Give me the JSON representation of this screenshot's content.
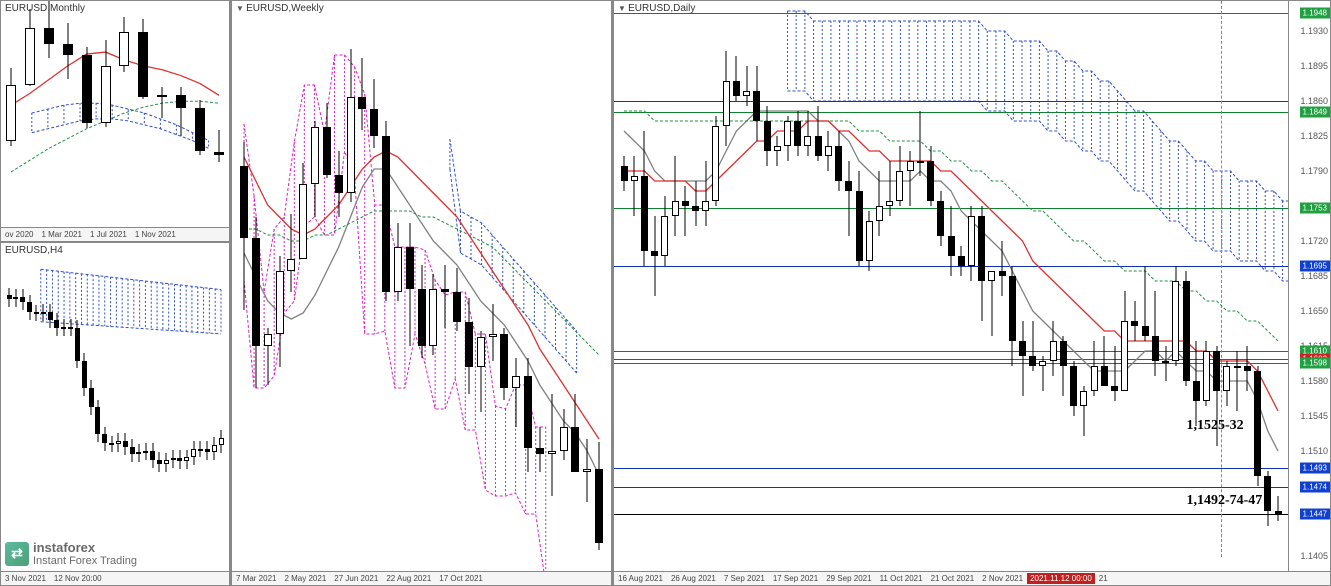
{
  "logo": {
    "brand": "instaforex",
    "tagline": "Instant Forex Trading"
  },
  "colors": {
    "candle_up": "#ffffff",
    "candle_down": "#000000",
    "candle_border": "#000000",
    "ma_red": "#e03030",
    "ma_green": "#209040",
    "ma_gray": "#808080",
    "cloud_blue": "#3050d0",
    "cloud_magenta": "#e020c0",
    "hline_blue": "#1030c0",
    "hline_green": "#108030",
    "hline_red": "#c02020",
    "hline_black": "#000000",
    "tag_green": "#20a040",
    "tag_blue": "#1040d0",
    "tag_red": "#d02020",
    "x_highlight": "#c02020"
  },
  "monthly": {
    "title": "EURUSD,Monthly",
    "x_ticks": [
      "ov 2020",
      "1 Mar 2021",
      "1 Jul 2021",
      "1 Nov 2021"
    ],
    "y_range": [
      1.12,
      1.235
    ],
    "candles": [
      {
        "t": 0.05,
        "o": 1.164,
        "h": 1.201,
        "l": 1.161,
        "c": 1.1925
      },
      {
        "t": 0.13,
        "o": 1.1925,
        "h": 1.231,
        "l": 1.192,
        "c": 1.2215
      },
      {
        "t": 0.21,
        "o": 1.2215,
        "h": 1.2349,
        "l": 1.206,
        "c": 1.213
      },
      {
        "t": 0.29,
        "o": 1.213,
        "h": 1.224,
        "l": 1.1955,
        "c": 1.2075
      },
      {
        "t": 0.37,
        "o": 1.2075,
        "h": 1.2115,
        "l": 1.1705,
        "c": 1.173
      },
      {
        "t": 0.45,
        "o": 1.173,
        "h": 1.215,
        "l": 1.171,
        "c": 1.202
      },
      {
        "t": 0.53,
        "o": 1.202,
        "h": 1.227,
        "l": 1.199,
        "c": 1.219
      },
      {
        "t": 0.61,
        "o": 1.219,
        "h": 1.226,
        "l": 1.185,
        "c": 1.186
      },
      {
        "t": 0.69,
        "o": 1.186,
        "h": 1.191,
        "l": 1.1755,
        "c": 1.187
      },
      {
        "t": 0.77,
        "o": 1.187,
        "h": 1.191,
        "l": 1.1665,
        "c": 1.1805
      },
      {
        "t": 0.85,
        "o": 1.1805,
        "h": 1.1845,
        "l": 1.1565,
        "c": 1.1585
      },
      {
        "t": 0.93,
        "o": 1.158,
        "h": 1.1695,
        "l": 1.153,
        "c": 1.1565
      }
    ],
    "ma_red": [
      1.182,
      1.188,
      1.195,
      1.202,
      1.208,
      1.209,
      1.205,
      1.202,
      1.2,
      1.197,
      1.193,
      1.187
    ],
    "ma_green": [
      1.148,
      1.154,
      1.16,
      1.165,
      1.17,
      1.174,
      1.178,
      1.181,
      1.183,
      1.184,
      1.184,
      1.183
    ],
    "cloud_blue_top": [
      1.178,
      1.18,
      1.182,
      1.183,
      1.183,
      1.182,
      1.18,
      1.178,
      1.175,
      1.172,
      1.168,
      1.164
    ],
    "cloud_blue_bot": [
      1.168,
      1.17,
      1.172,
      1.174,
      1.175,
      1.175,
      1.174,
      1.172,
      1.17,
      1.167,
      1.164,
      1.16
    ]
  },
  "h4": {
    "title": "EURUSD,H4",
    "x_ticks": [
      "3 Nov 2021",
      "12 Nov 20:00"
    ],
    "y_range": [
      1.14,
      1.165
    ],
    "candles_count": 32
  },
  "weekly": {
    "title": "EURUSD,Weekly",
    "x_ticks": [
      "7 Mar 2021",
      "2 May 2021",
      "27 Jun 2021",
      "22 Aug 2021",
      "17 Oct 2021"
    ],
    "y_range": [
      1.14,
      1.235
    ],
    "candles": [
      {
        "o": 1.2075,
        "h": 1.2115,
        "l": 1.1835,
        "c": 1.1955
      },
      {
        "o": 1.1955,
        "h": 1.199,
        "l": 1.1705,
        "c": 1.1775
      },
      {
        "o": 1.1775,
        "h": 1.1805,
        "l": 1.171,
        "c": 1.1795
      },
      {
        "o": 1.1795,
        "h": 1.1925,
        "l": 1.174,
        "c": 1.19
      },
      {
        "o": 1.19,
        "h": 1.1995,
        "l": 1.1865,
        "c": 1.192
      },
      {
        "o": 1.192,
        "h": 1.208,
        "l": 1.1945,
        "c": 1.2045
      },
      {
        "o": 1.2045,
        "h": 1.215,
        "l": 1.199,
        "c": 1.214
      },
      {
        "o": 1.214,
        "h": 1.218,
        "l": 1.2055,
        "c": 1.206
      },
      {
        "o": 1.206,
        "h": 1.21,
        "l": 1.199,
        "c": 1.203
      },
      {
        "o": 1.203,
        "h": 1.227,
        "l": 1.2015,
        "c": 1.219
      },
      {
        "o": 1.219,
        "h": 1.2255,
        "l": 1.2135,
        "c": 1.217
      },
      {
        "o": 1.217,
        "h": 1.222,
        "l": 1.2105,
        "c": 1.2125
      },
      {
        "o": 1.2125,
        "h": 1.215,
        "l": 1.185,
        "c": 1.1865
      },
      {
        "o": 1.1865,
        "h": 1.198,
        "l": 1.185,
        "c": 1.194
      },
      {
        "o": 1.194,
        "h": 1.198,
        "l": 1.1775,
        "c": 1.187
      },
      {
        "o": 1.187,
        "h": 1.191,
        "l": 1.1755,
        "c": 1.1775
      },
      {
        "o": 1.1775,
        "h": 1.1895,
        "l": 1.176,
        "c": 1.187
      },
      {
        "o": 1.187,
        "h": 1.191,
        "l": 1.1805,
        "c": 1.1865
      },
      {
        "o": 1.1865,
        "h": 1.1905,
        "l": 1.18,
        "c": 1.1815
      },
      {
        "o": 1.1815,
        "h": 1.1855,
        "l": 1.1695,
        "c": 1.174
      },
      {
        "o": 1.174,
        "h": 1.18,
        "l": 1.1665,
        "c": 1.179
      },
      {
        "o": 1.179,
        "h": 1.1845,
        "l": 1.175,
        "c": 1.1795
      },
      {
        "o": 1.1795,
        "h": 1.1805,
        "l": 1.1685,
        "c": 1.1705
      },
      {
        "o": 1.1705,
        "h": 1.1755,
        "l": 1.164,
        "c": 1.1725
      },
      {
        "o": 1.1725,
        "h": 1.1755,
        "l": 1.1565,
        "c": 1.1605
      },
      {
        "o": 1.1605,
        "h": 1.164,
        "l": 1.1565,
        "c": 1.1595
      },
      {
        "o": 1.1595,
        "h": 1.1695,
        "l": 1.1525,
        "c": 1.16
      },
      {
        "o": 1.16,
        "h": 1.167,
        "l": 1.1585,
        "c": 1.164
      },
      {
        "o": 1.164,
        "h": 1.1695,
        "l": 1.1575,
        "c": 1.1565
      },
      {
        "o": 1.1565,
        "h": 1.162,
        "l": 1.1515,
        "c": 1.157
      },
      {
        "o": 1.157,
        "h": 1.1615,
        "l": 1.1435,
        "c": 1.1447
      }
    ],
    "ma_red": [
      1.209,
      1.205,
      1.201,
      1.199,
      1.197,
      1.196,
      1.197,
      1.199,
      1.201,
      1.204,
      1.207,
      1.209,
      1.21,
      1.209,
      1.207,
      1.205,
      1.203,
      1.201,
      1.199,
      1.196,
      1.193,
      1.19,
      1.187,
      1.184,
      1.181,
      1.177,
      1.174,
      1.171,
      1.168,
      1.165,
      1.162
    ],
    "ma_green": [
      1.197,
      1.197,
      1.196,
      1.196,
      1.195,
      1.195,
      1.196,
      1.196,
      1.197,
      1.198,
      1.199,
      1.2,
      1.2,
      1.2,
      1.2,
      1.199,
      1.199,
      1.198,
      1.197,
      1.196,
      1.195,
      1.194,
      1.192,
      1.19,
      1.188,
      1.186,
      1.184,
      1.182,
      1.18,
      1.178,
      1.176
    ],
    "ma_gray": [
      1.193,
      1.189,
      1.185,
      1.183,
      1.182,
      1.183,
      1.186,
      1.19,
      1.194,
      1.199,
      1.204,
      1.207,
      1.207,
      1.204,
      1.201,
      1.198,
      1.195,
      1.193,
      1.191,
      1.188,
      1.185,
      1.183,
      1.181,
      1.178,
      1.175,
      1.171,
      1.168,
      1.165,
      1.163,
      1.16,
      1.156
    ]
  },
  "daily": {
    "title": "EURUSD,Daily",
    "x_ticks": [
      "16 Aug 2021",
      "26 Aug 2021",
      "7 Sep 2021",
      "17 Sep 2021",
      "29 Sep 2021",
      "11 Oct 2021",
      "21 Oct 2021",
      "2 Nov 2021"
    ],
    "x_highlight": "2021.11.12 00:00",
    "y_range": [
      1.139,
      1.196
    ],
    "y_ticks": [
      1.1405,
      1.1447,
      1.1475,
      1.151,
      1.1545,
      1.158,
      1.1615,
      1.165,
      1.1685,
      1.172,
      1.1755,
      1.179,
      1.1825,
      1.186,
      1.1895,
      1.193
    ],
    "price_tags": [
      {
        "v": 1.1948,
        "bg": "#20a040"
      },
      {
        "v": 1.1849,
        "bg": "#20a040"
      },
      {
        "v": 1.1753,
        "bg": "#20a040"
      },
      {
        "v": 1.1695,
        "bg": "#1040d0"
      },
      {
        "v": 1.161,
        "bg": "#20a040"
      },
      {
        "v": 1.1602,
        "bg": "#d02020"
      },
      {
        "v": 1.1598,
        "bg": "#20a040"
      },
      {
        "v": 1.1493,
        "bg": "#1040d0"
      },
      {
        "v": 1.1474,
        "bg": "#1040d0"
      },
      {
        "v": 1.1447,
        "bg": "#1040d0"
      }
    ],
    "hlines": [
      {
        "v": 1.1948,
        "c": "#108030"
      },
      {
        "v": 1.186,
        "c": "#1030c0"
      },
      {
        "v": 1.1849,
        "c": "#108030"
      },
      {
        "v": 1.1753,
        "c": "#108030"
      },
      {
        "v": 1.1695,
        "c": "#1030c0"
      },
      {
        "v": 1.161,
        "c": "#108030"
      },
      {
        "v": 1.1602,
        "c": "#c02020"
      },
      {
        "v": 1.1598,
        "c": "#108030"
      },
      {
        "v": 1.1493,
        "c": "#1030c0"
      },
      {
        "v": 1.1474,
        "c": "#1030c0"
      },
      {
        "v": 1.1447,
        "c": "#000000"
      }
    ],
    "annotations": [
      {
        "text": "1,1525-32",
        "x": 0.86,
        "y_v": 1.1535
      },
      {
        "text": "1,1492-74-47",
        "x": 0.86,
        "y_v": 1.146
      }
    ],
    "vline_x": 0.913,
    "candles": [
      {
        "o": 1.1795,
        "h": 1.1805,
        "l": 1.177,
        "c": 1.178
      },
      {
        "o": 1.178,
        "h": 1.1805,
        "l": 1.1745,
        "c": 1.1785
      },
      {
        "o": 1.1785,
        "h": 1.183,
        "l": 1.1695,
        "c": 1.171
      },
      {
        "o": 1.171,
        "h": 1.1745,
        "l": 1.1665,
        "c": 1.1705
      },
      {
        "o": 1.1705,
        "h": 1.1765,
        "l": 1.1695,
        "c": 1.1745
      },
      {
        "o": 1.1745,
        "h": 1.1805,
        "l": 1.1725,
        "c": 1.176
      },
      {
        "o": 1.176,
        "h": 1.1775,
        "l": 1.1725,
        "c": 1.1755
      },
      {
        "o": 1.1755,
        "h": 1.178,
        "l": 1.1735,
        "c": 1.175
      },
      {
        "o": 1.175,
        "h": 1.18,
        "l": 1.1735,
        "c": 1.176
      },
      {
        "o": 1.176,
        "h": 1.1845,
        "l": 1.1755,
        "c": 1.1835
      },
      {
        "o": 1.1835,
        "h": 1.191,
        "l": 1.1815,
        "c": 1.188
      },
      {
        "o": 1.188,
        "h": 1.1905,
        "l": 1.186,
        "c": 1.1865
      },
      {
        "o": 1.1865,
        "h": 1.1895,
        "l": 1.1855,
        "c": 1.187
      },
      {
        "o": 1.187,
        "h": 1.1895,
        "l": 1.182,
        "c": 1.184
      },
      {
        "o": 1.184,
        "h": 1.1855,
        "l": 1.1795,
        "c": 1.181
      },
      {
        "o": 1.181,
        "h": 1.1825,
        "l": 1.1795,
        "c": 1.1815
      },
      {
        "o": 1.1815,
        "h": 1.1845,
        "l": 1.18,
        "c": 1.184
      },
      {
        "o": 1.184,
        "h": 1.185,
        "l": 1.1805,
        "c": 1.1815
      },
      {
        "o": 1.1815,
        "h": 1.185,
        "l": 1.1805,
        "c": 1.1825
      },
      {
        "o": 1.1825,
        "h": 1.1855,
        "l": 1.18,
        "c": 1.1805
      },
      {
        "o": 1.1805,
        "h": 1.183,
        "l": 1.179,
        "c": 1.1815
      },
      {
        "o": 1.1815,
        "h": 1.183,
        "l": 1.177,
        "c": 1.178
      },
      {
        "o": 1.178,
        "h": 1.18,
        "l": 1.1725,
        "c": 1.177
      },
      {
        "o": 1.177,
        "h": 1.179,
        "l": 1.1695,
        "c": 1.17
      },
      {
        "o": 1.17,
        "h": 1.175,
        "l": 1.169,
        "c": 1.174
      },
      {
        "o": 1.174,
        "h": 1.179,
        "l": 1.1725,
        "c": 1.1755
      },
      {
        "o": 1.1755,
        "h": 1.18,
        "l": 1.1745,
        "c": 1.176
      },
      {
        "o": 1.176,
        "h": 1.1815,
        "l": 1.1755,
        "c": 1.179
      },
      {
        "o": 1.179,
        "h": 1.181,
        "l": 1.1755,
        "c": 1.18
      },
      {
        "o": 1.18,
        "h": 1.185,
        "l": 1.1785,
        "c": 1.18
      },
      {
        "o": 1.18,
        "h": 1.1815,
        "l": 1.1755,
        "c": 1.176
      },
      {
        "o": 1.176,
        "h": 1.177,
        "l": 1.1715,
        "c": 1.1725
      },
      {
        "o": 1.1725,
        "h": 1.1755,
        "l": 1.1685,
        "c": 1.1705
      },
      {
        "o": 1.1705,
        "h": 1.1715,
        "l": 1.1685,
        "c": 1.1695
      },
      {
        "o": 1.1695,
        "h": 1.1755,
        "l": 1.168,
        "c": 1.1745
      },
      {
        "o": 1.1745,
        "h": 1.1755,
        "l": 1.164,
        "c": 1.168
      },
      {
        "o": 1.168,
        "h": 1.169,
        "l": 1.1625,
        "c": 1.169
      },
      {
        "o": 1.169,
        "h": 1.172,
        "l": 1.1665,
        "c": 1.1685
      },
      {
        "o": 1.1685,
        "h": 1.1695,
        "l": 1.1595,
        "c": 1.162
      },
      {
        "o": 1.162,
        "h": 1.164,
        "l": 1.1565,
        "c": 1.1605
      },
      {
        "o": 1.1605,
        "h": 1.164,
        "l": 1.159,
        "c": 1.1595
      },
      {
        "o": 1.1595,
        "h": 1.1605,
        "l": 1.157,
        "c": 1.16
      },
      {
        "o": 1.16,
        "h": 1.164,
        "l": 1.1585,
        "c": 1.162
      },
      {
        "o": 1.162,
        "h": 1.1625,
        "l": 1.1565,
        "c": 1.1595
      },
      {
        "o": 1.1595,
        "h": 1.16,
        "l": 1.1545,
        "c": 1.1555
      },
      {
        "o": 1.1555,
        "h": 1.1575,
        "l": 1.1525,
        "c": 1.157
      },
      {
        "o": 1.157,
        "h": 1.162,
        "l": 1.1565,
        "c": 1.1595
      },
      {
        "o": 1.1595,
        "h": 1.1625,
        "l": 1.1575,
        "c": 1.1575
      },
      {
        "o": 1.1575,
        "h": 1.1615,
        "l": 1.156,
        "c": 1.157
      },
      {
        "o": 1.157,
        "h": 1.167,
        "l": 1.157,
        "c": 1.164
      },
      {
        "o": 1.164,
        "h": 1.166,
        "l": 1.162,
        "c": 1.1635
      },
      {
        "o": 1.1635,
        "h": 1.1695,
        "l": 1.162,
        "c": 1.1625
      },
      {
        "o": 1.1625,
        "h": 1.167,
        "l": 1.1585,
        "c": 1.16
      },
      {
        "o": 1.16,
        "h": 1.1615,
        "l": 1.158,
        "c": 1.16
      },
      {
        "o": 1.16,
        "h": 1.1695,
        "l": 1.1595,
        "c": 1.168
      },
      {
        "o": 1.168,
        "h": 1.169,
        "l": 1.1575,
        "c": 1.158
      },
      {
        "o": 1.158,
        "h": 1.162,
        "l": 1.1535,
        "c": 1.156
      },
      {
        "o": 1.156,
        "h": 1.162,
        "l": 1.1555,
        "c": 1.161
      },
      {
        "o": 1.161,
        "h": 1.1615,
        "l": 1.1515,
        "c": 1.157
      },
      {
        "o": 1.157,
        "h": 1.16,
        "l": 1.1555,
        "c": 1.1595
      },
      {
        "o": 1.1595,
        "h": 1.161,
        "l": 1.155,
        "c": 1.1595
      },
      {
        "o": 1.1595,
        "h": 1.1615,
        "l": 1.157,
        "c": 1.159
      },
      {
        "o": 1.159,
        "h": 1.1595,
        "l": 1.1475,
        "c": 1.1485
      },
      {
        "o": 1.1485,
        "h": 1.149,
        "l": 1.1435,
        "c": 1.145
      },
      {
        "o": 1.145,
        "h": 1.1465,
        "l": 1.144,
        "c": 1.1447
      }
    ],
    "ma_red": [
      1.179,
      1.179,
      1.179,
      1.178,
      1.178,
      1.178,
      1.178,
      1.177,
      1.177,
      1.178,
      1.179,
      1.18,
      1.181,
      1.182,
      1.182,
      1.183,
      1.183,
      1.183,
      1.184,
      1.184,
      1.184,
      1.183,
      1.183,
      1.182,
      1.181,
      1.181,
      1.18,
      1.18,
      1.18,
      1.18,
      1.18,
      1.179,
      1.179,
      1.178,
      1.177,
      1.176,
      1.175,
      1.174,
      1.173,
      1.172,
      1.17,
      1.169,
      1.168,
      1.167,
      1.166,
      1.165,
      1.164,
      1.163,
      1.163,
      1.162,
      1.162,
      1.162,
      1.162,
      1.162,
      1.162,
      1.162,
      1.161,
      1.161,
      1.16,
      1.16,
      1.16,
      1.16,
      1.159,
      1.157,
      1.155
    ],
    "ma_green": [
      1.185,
      1.185,
      1.185,
      1.184,
      1.184,
      1.184,
      1.184,
      1.184,
      1.184,
      1.184,
      1.184,
      1.184,
      1.184,
      1.184,
      1.184,
      1.184,
      1.184,
      1.184,
      1.184,
      1.184,
      1.184,
      1.184,
      1.184,
      1.183,
      1.183,
      1.183,
      1.182,
      1.182,
      1.182,
      1.182,
      1.181,
      1.181,
      1.18,
      1.18,
      1.179,
      1.179,
      1.178,
      1.178,
      1.177,
      1.176,
      1.175,
      1.175,
      1.174,
      1.173,
      1.172,
      1.172,
      1.171,
      1.17,
      1.17,
      1.169,
      1.169,
      1.169,
      1.168,
      1.168,
      1.168,
      1.167,
      1.167,
      1.166,
      1.166,
      1.165,
      1.165,
      1.164,
      1.164,
      1.163,
      1.162
    ],
    "ma_gray": [
      1.183,
      1.182,
      1.181,
      1.179,
      1.178,
      1.178,
      1.178,
      1.178,
      1.178,
      1.179,
      1.181,
      1.183,
      1.184,
      1.185,
      1.185,
      1.185,
      1.185,
      1.185,
      1.185,
      1.184,
      1.184,
      1.183,
      1.182,
      1.18,
      1.179,
      1.178,
      1.178,
      1.178,
      1.178,
      1.179,
      1.178,
      1.178,
      1.177,
      1.175,
      1.174,
      1.173,
      1.172,
      1.171,
      1.169,
      1.167,
      1.165,
      1.164,
      1.163,
      1.162,
      1.161,
      1.16,
      1.159,
      1.159,
      1.159,
      1.159,
      1.16,
      1.161,
      1.161,
      1.16,
      1.161,
      1.16,
      1.159,
      1.159,
      1.158,
      1.158,
      1.158,
      1.158,
      1.156,
      1.153,
      1.151
    ]
  }
}
